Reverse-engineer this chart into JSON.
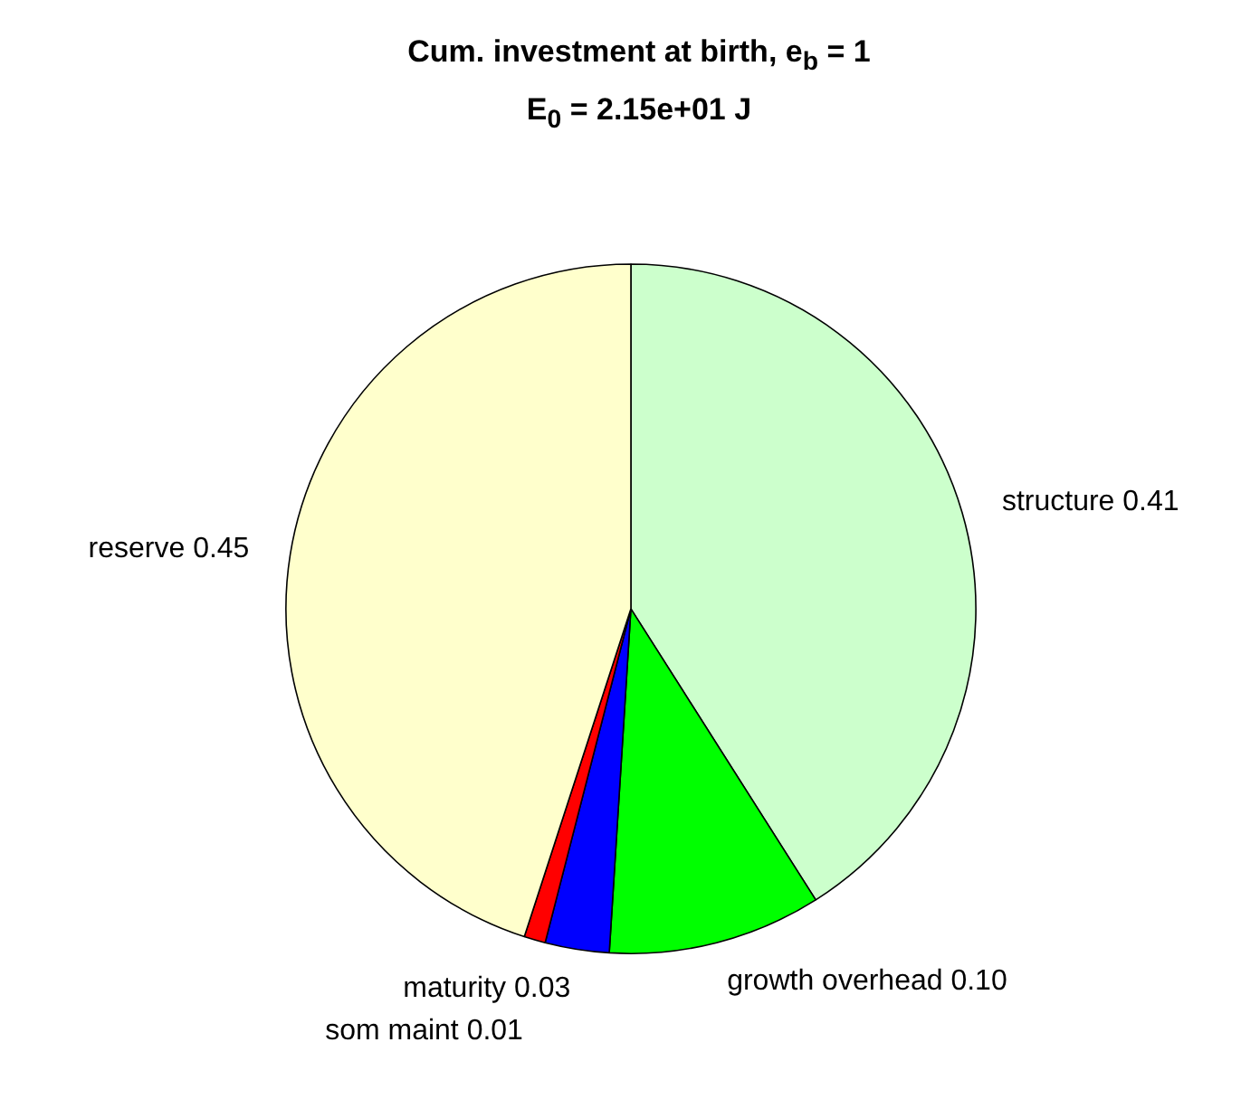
{
  "chart_data": {
    "type": "pie",
    "title": "Cum. investment at birth, e$_{b}$ = 1",
    "subtitle": "E$_{0}$ = 2.15e+01 J",
    "categories": [
      "structure 0.41",
      "growth overhead 0.10",
      "maturity 0.03",
      "som maint 0.01",
      "reserve 0.45"
    ],
    "values": [
      0.41,
      0.1,
      0.03,
      0.01,
      0.45
    ],
    "colors": [
      "#ccffcc",
      "#00ff00",
      "#0000ff",
      "#ff0000",
      "#ffffcc"
    ]
  }
}
